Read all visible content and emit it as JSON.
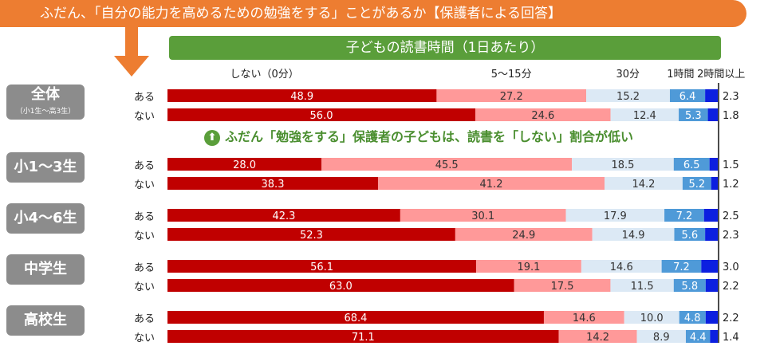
{
  "header": {
    "title": "ふだん、「自分の能力を高めるための勉強をする」ことがあるか【保護者による回答】",
    "subtitle": "子どもの読書時間（1日あたり）"
  },
  "annotation": {
    "text": "ふだん「勉強をする」保護者の子どもは、読書を「しない」割合が低い",
    "icon": "up-arrow-icon"
  },
  "colors": {
    "banner": "#ed7d31",
    "subtitle_bar": "#5a9e3a",
    "seg_none": "#c00000",
    "seg_5_15": "#ff9999",
    "seg_30": "#dce9f5",
    "seg_1h": "#4f9ad8",
    "seg_2h": "#0c1fe0"
  },
  "chart_data": {
    "type": "bar",
    "orientation": "horizontal",
    "stacked": true,
    "unit": "%",
    "series_names": [
      "しない（0分）",
      "5〜15分",
      "30分",
      "1時間",
      "2時間以上"
    ],
    "groups": [
      {
        "name": "全体",
        "sub": "（小1生〜高3生）",
        "rows": [
          {
            "label": "ある",
            "values": [
              48.9,
              27.2,
              15.2,
              6.4,
              2.3
            ]
          },
          {
            "label": "ない",
            "values": [
              56.0,
              24.6,
              12.4,
              5.3,
              1.8
            ]
          }
        ]
      },
      {
        "name": "小1〜3生",
        "sub": "",
        "rows": [
          {
            "label": "ある",
            "values": [
              28.0,
              45.5,
              18.5,
              6.5,
              1.5
            ]
          },
          {
            "label": "ない",
            "values": [
              38.3,
              41.2,
              14.2,
              5.2,
              1.2
            ]
          }
        ]
      },
      {
        "name": "小4〜6生",
        "sub": "",
        "rows": [
          {
            "label": "ある",
            "values": [
              42.3,
              30.1,
              17.9,
              7.2,
              2.5
            ]
          },
          {
            "label": "ない",
            "values": [
              52.3,
              24.9,
              14.9,
              5.6,
              2.3
            ]
          }
        ]
      },
      {
        "name": "中学生",
        "sub": "",
        "rows": [
          {
            "label": "ある",
            "values": [
              56.1,
              19.1,
              14.6,
              7.2,
              3.0
            ]
          },
          {
            "label": "ない",
            "values": [
              63.0,
              17.5,
              11.5,
              5.8,
              2.2
            ]
          }
        ]
      },
      {
        "name": "高校生",
        "sub": "",
        "rows": [
          {
            "label": "ある",
            "values": [
              68.4,
              14.6,
              10.0,
              4.8,
              2.2
            ]
          },
          {
            "label": "ない",
            "values": [
              71.1,
              14.2,
              8.9,
              4.4,
              1.4
            ]
          }
        ]
      }
    ]
  }
}
